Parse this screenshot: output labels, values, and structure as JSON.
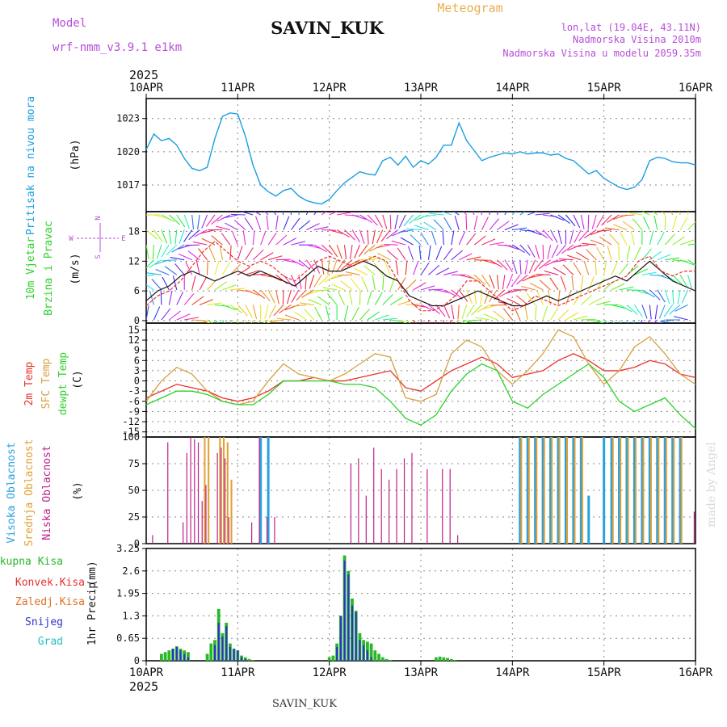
{
  "header": {
    "model_label": "Model",
    "model_name": "wrf-nmm_v3.9.1 e1km",
    "station": "SAVIN_KUK",
    "product": "Meteogram",
    "lonlat": "lon,lat (19.04E, 43.11N)",
    "elevation": "Nadmorska Visina 2010m",
    "model_elevation": "Nadmorska Visina u modelu 2059.35m",
    "footer_station": "SAVIN_KUK",
    "credit": "made by Angel",
    "year": "2025"
  },
  "colors": {
    "pressure": "#1a9ee0",
    "temp2m": "#e8312a",
    "sfc_temp": "#d8a040",
    "dewpt": "#2ed12a",
    "header_purple": "#b84ed8",
    "orange": "#e8b050",
    "cloud_high": "#28a0e0",
    "cloud_mid": "#e0a030",
    "cloud_low": "#c0208a",
    "precip_total": "#28b828",
    "precip_conv": "#e83030",
    "precip_frz": "#e07020",
    "precip_snow": "#3030d0",
    "precip_hail": "#20c0c0"
  },
  "x_axis": {
    "labels": [
      "10APR",
      "11APR",
      "12APR",
      "13APR",
      "14APR",
      "15APR",
      "16APR"
    ]
  },
  "chart_data": [
    {
      "id": "pressure",
      "type": "line",
      "ylabel_line1": "Pritisak na nivou mora",
      "ylabel_line2": "(hPa)",
      "ylim": [
        1014.6,
        1024.8
      ],
      "yticks": [
        1017,
        1020,
        1023
      ],
      "grid": true,
      "x_hours": [
        0,
        2,
        4,
        6,
        8,
        10,
        12,
        14,
        16,
        18,
        20,
        22,
        24,
        26,
        28,
        30,
        32,
        34,
        36,
        38,
        40,
        42,
        44,
        46,
        48,
        50,
        52,
        54,
        56,
        58,
        60,
        62,
        64,
        66,
        68,
        70,
        72,
        74,
        76,
        78,
        80,
        82,
        84,
        86,
        88,
        90,
        92,
        94,
        96,
        98,
        100,
        102,
        104,
        106,
        108,
        110,
        112,
        114,
        116,
        118,
        120,
        122,
        124,
        126,
        128,
        130,
        132,
        134,
        136,
        138,
        140,
        142,
        144
      ],
      "values": [
        1020.2,
        1021.6,
        1021.0,
        1021.2,
        1020.6,
        1019.4,
        1018.5,
        1018.3,
        1018.6,
        1021.2,
        1023.2,
        1023.5,
        1023.4,
        1021.4,
        1018.8,
        1017.0,
        1016.4,
        1016.0,
        1016.5,
        1016.7,
        1016.0,
        1015.6,
        1015.4,
        1015.3,
        1015.7,
        1016.5,
        1017.2,
        1017.7,
        1018.2,
        1018.0,
        1017.9,
        1019.2,
        1019.5,
        1018.8,
        1019.6,
        1018.6,
        1019.2,
        1018.9,
        1019.5,
        1020.6,
        1020.6,
        1022.6,
        1021.0,
        1020.1,
        1019.2,
        1019.5,
        1019.7,
        1019.9,
        1019.8,
        1020.0,
        1019.8,
        1019.9,
        1019.9,
        1019.7,
        1019.8,
        1019.4,
        1019.2,
        1018.6,
        1018.0,
        1018.3,
        1017.6,
        1017.2,
        1016.8,
        1016.6,
        1016.8,
        1017.5,
        1019.2,
        1019.5,
        1019.4,
        1019.1,
        1019.0,
        1019.0,
        1018.8
      ]
    },
    {
      "id": "wind",
      "type": "line",
      "ylabel_line1": "10m Vjetar",
      "ylabel_line2": "Brzina i Pravac",
      "ylabel_unit": "(m/s)",
      "ylim": [
        -0.5,
        22
      ],
      "yticks": [
        0,
        6,
        12,
        18
      ],
      "grid": true,
      "compass": {
        "n": "N",
        "e": "E",
        "w": "W",
        "s": "S"
      },
      "x_hours": [
        0,
        3,
        6,
        9,
        12,
        15,
        18,
        21,
        24,
        27,
        30,
        33,
        36,
        39,
        42,
        45,
        48,
        51,
        54,
        57,
        60,
        63,
        66,
        69,
        72,
        75,
        78,
        81,
        84,
        87,
        90,
        93,
        96,
        99,
        102,
        105,
        108,
        111,
        114,
        117,
        120,
        123,
        126,
        129,
        132,
        135,
        138,
        141,
        144
      ],
      "series": [
        {
          "values": [
            4,
            6,
            7,
            9,
            10,
            9,
            8,
            9,
            10,
            9,
            10,
            9,
            8,
            7,
            9,
            11,
            10,
            10,
            11,
            12,
            11,
            9,
            8,
            5,
            4,
            3,
            3,
            4,
            5,
            6,
            5,
            4,
            3,
            3,
            4,
            5,
            4,
            5,
            6,
            7,
            8,
            9,
            8,
            10,
            12,
            10,
            8,
            7,
            6
          ]
        },
        {
          "values": [
            3,
            5,
            6,
            8,
            11,
            14,
            16,
            14,
            12,
            11,
            12,
            11,
            9,
            8,
            10,
            12,
            13,
            12,
            11,
            12,
            13,
            12,
            8,
            4,
            2,
            2,
            3,
            5,
            8,
            8,
            6,
            4,
            2,
            3,
            5,
            4,
            3,
            4,
            5,
            6,
            7,
            8,
            9,
            12,
            13,
            10,
            9,
            10,
            10
          ]
        }
      ]
    },
    {
      "id": "temperature",
      "type": "line",
      "ylabel_line1": "2m Temp",
      "ylabel_line2": "SFC Temp",
      "ylabel_line3": "dewpt Temp",
      "ylabel_unit": "(C)",
      "ylim": [
        -16.5,
        17
      ],
      "yticks": [
        -15,
        -12,
        -9,
        -6,
        -3,
        0,
        3,
        6,
        9,
        12,
        15
      ],
      "grid": true,
      "x_hours": [
        0,
        4,
        8,
        12,
        16,
        20,
        24,
        28,
        32,
        36,
        40,
        44,
        48,
        52,
        56,
        60,
        64,
        68,
        72,
        76,
        80,
        84,
        88,
        92,
        96,
        100,
        104,
        108,
        112,
        116,
        120,
        124,
        128,
        132,
        136,
        140,
        144
      ],
      "series": [
        {
          "name": "2m Temp",
          "values": [
            -5,
            -3,
            -1,
            -2,
            -3,
            -5,
            -6,
            -5,
            -3,
            0,
            0,
            1,
            0,
            0,
            1,
            2,
            3,
            -2,
            -3,
            0,
            3,
            5,
            7,
            5,
            1,
            2,
            3,
            6,
            8,
            6,
            3,
            3,
            4,
            6,
            5,
            2,
            1
          ]
        },
        {
          "name": "SFC Temp",
          "values": [
            -6,
            0,
            4,
            2,
            -3,
            -6,
            -7,
            -6,
            0,
            5,
            2,
            1,
            0,
            2,
            5,
            8,
            7,
            -5,
            -6,
            -4,
            8,
            12,
            10,
            3,
            -1,
            3,
            8,
            15,
            13,
            5,
            -1,
            3,
            10,
            13,
            8,
            2,
            -1
          ]
        },
        {
          "name": "dewpt Temp",
          "values": [
            -7,
            -5,
            -3,
            -3,
            -4,
            -6,
            -7,
            -7,
            -4,
            0,
            0,
            0,
            0,
            -1,
            -1,
            -2,
            -6,
            -11,
            -13,
            -10,
            -3,
            2,
            5,
            3,
            -6,
            -8,
            -4,
            -1,
            2,
            5,
            1,
            -6,
            -9,
            -7,
            -5,
            -10,
            -14
          ]
        }
      ]
    },
    {
      "id": "clouds",
      "type": "bar",
      "ylabel_line1": "Visoka Oblacnost",
      "ylabel_line2": "Srednja Oblacnost",
      "ylabel_line3": "Niska Oblacnost",
      "ylabel_unit": "(%)",
      "ylim": [
        0,
        100
      ],
      "yticks": [
        0,
        25,
        50,
        75,
        100
      ],
      "grid": true,
      "x_hours": [
        2,
        6,
        8,
        10,
        11,
        12,
        13,
        14,
        15,
        16,
        19,
        20,
        21,
        22,
        23,
        24,
        26,
        28,
        30,
        32,
        34,
        36,
        39,
        42,
        44,
        46,
        48,
        49,
        50,
        52,
        54,
        56,
        58,
        60,
        62,
        64,
        66,
        68,
        70,
        74,
        78,
        80,
        82,
        84,
        86,
        88,
        90,
        92,
        94,
        96,
        98,
        100,
        102,
        104,
        106,
        108,
        110,
        112,
        114,
        116,
        118,
        120,
        122,
        124,
        126,
        128,
        130,
        132,
        134,
        136,
        138,
        140,
        142,
        144
      ],
      "series": [
        {
          "name": "Visoka Oblacnost",
          "values": [
            0,
            0,
            0,
            0,
            0,
            0,
            0,
            0,
            0,
            0,
            0,
            0,
            0,
            0,
            0,
            0,
            0,
            0,
            100,
            100,
            0,
            0,
            0,
            0,
            0,
            0,
            0,
            0,
            0,
            0,
            0,
            0,
            0,
            0,
            0,
            0,
            0,
            0,
            0,
            0,
            0,
            0,
            0,
            0,
            0,
            0,
            0,
            0,
            0,
            0,
            100,
            100,
            100,
            100,
            100,
            100,
            100,
            100,
            100,
            45,
            0,
            100,
            100,
            100,
            100,
            100,
            100,
            100,
            100,
            100,
            100,
            100,
            0,
            0
          ]
        },
        {
          "name": "Srednja Oblacnost",
          "values": [
            0,
            0,
            0,
            0,
            0,
            0,
            0,
            0,
            100,
            100,
            100,
            100,
            95,
            60,
            0,
            0,
            0,
            0,
            0,
            0,
            0,
            0,
            0,
            0,
            0,
            0,
            0,
            0,
            0,
            0,
            0,
            0,
            0,
            0,
            0,
            0,
            0,
            0,
            0,
            0,
            0,
            0,
            0,
            0,
            0,
            0,
            0,
            0,
            0,
            0,
            100,
            100,
            100,
            100,
            100,
            100,
            100,
            100,
            100,
            0,
            0,
            0,
            100,
            100,
            100,
            100,
            100,
            100,
            100,
            100,
            100,
            100,
            0,
            0
          ]
        },
        {
          "name": "Niska Oblacnost",
          "values": [
            8,
            95,
            0,
            20,
            85,
            100,
            98,
            95,
            40,
            55,
            85,
            90,
            80,
            25,
            0,
            0,
            0,
            20,
            100,
            25,
            25,
            0,
            0,
            0,
            0,
            0,
            0,
            0,
            0,
            0,
            75,
            80,
            45,
            90,
            70,
            60,
            70,
            80,
            85,
            70,
            70,
            70,
            8,
            0,
            0,
            0,
            0,
            0,
            0,
            0,
            0,
            0,
            0,
            0,
            0,
            0,
            0,
            0,
            0,
            0,
            0,
            0,
            0,
            0,
            0,
            0,
            0,
            0,
            0,
            0,
            0,
            0,
            0,
            30
          ]
        }
      ]
    },
    {
      "id": "precip",
      "type": "bar",
      "ylabel_line1": "1hr Precip",
      "ylabel_unit": "(mm)",
      "ylim": [
        0,
        3.25
      ],
      "yticks": [
        0,
        0.65,
        1.3,
        1.95,
        2.6,
        3.25
      ],
      "ytick_labels": [
        "0",
        "0.65",
        "1.3",
        "1.95",
        "2.6",
        "3.25"
      ],
      "grid": true,
      "legend": [
        "Ukupna Kisa",
        "Konvek.Kisa",
        "Zaledj.Kisa",
        "Snijeg",
        "Grad"
      ],
      "x_hours": [
        4,
        5,
        6,
        7,
        8,
        9,
        10,
        11,
        12,
        13,
        14,
        15,
        16,
        17,
        18,
        19,
        20,
        21,
        22,
        23,
        24,
        25,
        26,
        27,
        28,
        48,
        49,
        50,
        51,
        52,
        53,
        54,
        55,
        56,
        57,
        58,
        59,
        60,
        61,
        62,
        63,
        64,
        65,
        66,
        67,
        68,
        69,
        70,
        76,
        77,
        78,
        79,
        80,
        81,
        82,
        83,
        84
      ],
      "series": [
        {
          "name": "Ukupna Kisa",
          "values": [
            0.2,
            0.25,
            0.3,
            0.35,
            0.42,
            0.35,
            0.3,
            0.25,
            0,
            0,
            0,
            0,
            0.2,
            0.5,
            0.6,
            1.5,
            0.8,
            1.1,
            0.5,
            0.35,
            0.3,
            0.15,
            0.1,
            0.05,
            0.02,
            0.1,
            0.15,
            0.5,
            1.3,
            3.05,
            2.6,
            1.8,
            1.45,
            0.8,
            0.6,
            0.55,
            0.5,
            0.3,
            0.2,
            0.1,
            0.05,
            0.02,
            0,
            0,
            0,
            0,
            0,
            0,
            0.1,
            0.12,
            0.1,
            0.08,
            0.05,
            0.02,
            0,
            0,
            0
          ]
        },
        {
          "name": "Snijeg",
          "values": [
            0,
            0,
            0,
            0.35,
            0.4,
            0.3,
            0.2,
            0.1,
            0,
            0,
            0,
            0,
            0,
            0,
            0.45,
            1.1,
            0.7,
            1.0,
            0.4,
            0.35,
            0.3,
            0.1,
            0.05,
            0,
            0,
            0,
            0,
            0.4,
            1.3,
            2.9,
            2.5,
            1.6,
            1.4,
            0.6,
            0.45,
            0.3,
            0.1,
            0,
            0,
            0,
            0,
            0,
            0,
            0,
            0,
            0,
            0,
            0,
            0,
            0,
            0,
            0,
            0,
            0,
            0,
            0,
            0
          ]
        }
      ]
    }
  ]
}
